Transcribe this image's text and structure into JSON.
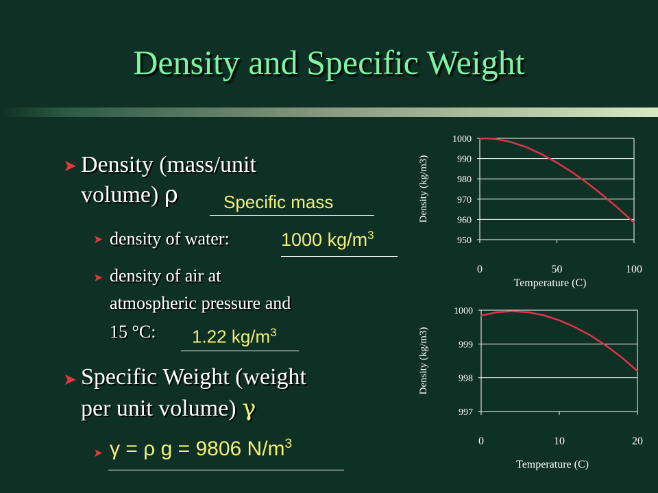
{
  "slide": {
    "title": "Density and Specific Weight",
    "bullet1": {
      "line1": "Density (mass/unit",
      "line2a": "volume)",
      "symbol": "ρ",
      "answer": "Specific mass"
    },
    "sub1": {
      "label": "density of water:",
      "answer": "1000 kg/m",
      "sup": "3"
    },
    "sub2": {
      "line1": "density of air at",
      "line2": "atmospheric pressure and",
      "line3": "15 °C:",
      "answer": "1.22 kg/m",
      "sup": "3"
    },
    "bullet2": {
      "line1": "Specific Weight (weight",
      "line2": "per unit volume)",
      "symbol": "γ"
    },
    "sub3": {
      "formula": "γ = ρ g = 9806 N/m",
      "sup": "3"
    }
  },
  "colors": {
    "background": "#0f3024",
    "title": "#7ef5a4",
    "answer": "#f0f07a",
    "bullet": "#e23a3a",
    "curve": "#e0344a"
  },
  "chart_data": [
    {
      "type": "line",
      "ylabel": "Density (kg/m3)",
      "xlabel": "Temperature (C)",
      "xlim": [
        0,
        100
      ],
      "ylim": [
        950,
        1000
      ],
      "x_ticks": [
        "0",
        "50",
        "100"
      ],
      "y_ticks": [
        "950",
        "960",
        "970",
        "980",
        "990",
        "1000"
      ],
      "grid": true,
      "x": [
        0,
        4,
        10,
        20,
        30,
        40,
        50,
        60,
        70,
        80,
        90,
        100
      ],
      "y": [
        999.8,
        1000,
        999.7,
        998.2,
        995.7,
        992.2,
        988.0,
        983.2,
        977.8,
        971.8,
        965.3,
        958.4
      ]
    },
    {
      "type": "line",
      "ylabel": "Density (kg/m3)",
      "xlabel": "Temperature (C)",
      "xlim": [
        0,
        20
      ],
      "ylim": [
        997,
        1000
      ],
      "x_ticks": [
        "0",
        "10",
        "20"
      ],
      "y_ticks": [
        "997",
        "998",
        "999",
        "1000"
      ],
      "grid": true,
      "x": [
        0,
        2,
        4,
        6,
        8,
        10,
        12,
        14,
        16,
        18,
        20
      ],
      "y": [
        999.84,
        999.94,
        999.97,
        999.94,
        999.85,
        999.7,
        999.5,
        999.25,
        998.95,
        998.6,
        998.2
      ]
    }
  ]
}
